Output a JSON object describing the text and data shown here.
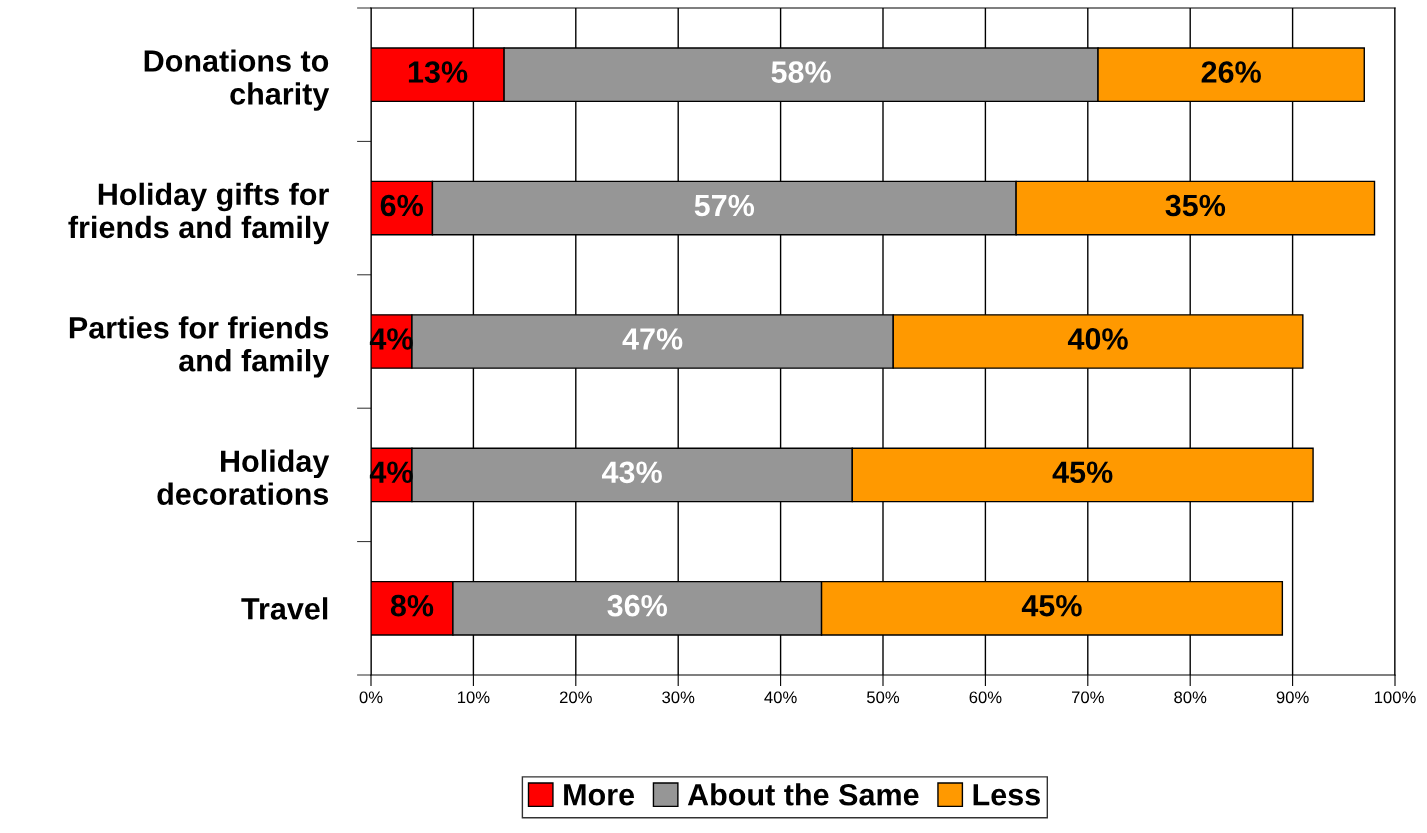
{
  "chart_data": {
    "type": "bar",
    "orientation": "horizontal",
    "stacked": true,
    "categories": [
      "Donations to\ncharity",
      "Holiday gifts for\nfriends and family",
      "Parties for friends\nand family",
      "Holiday\ndecorations",
      "Travel"
    ],
    "series": [
      {
        "name": "More",
        "color": "#ff0000",
        "values": [
          13,
          6,
          4,
          4,
          8
        ],
        "value_labels": [
          "13%",
          "6%",
          "4%",
          "4%",
          "8%"
        ]
      },
      {
        "name": "About the Same",
        "color": "#969696",
        "values": [
          58,
          57,
          47,
          43,
          36
        ],
        "value_labels": [
          "58%",
          "57%",
          "47%",
          "43%",
          "36%"
        ]
      },
      {
        "name": "Less",
        "color": "#ff9900",
        "values": [
          26,
          35,
          40,
          45,
          45
        ],
        "value_labels": [
          "26%",
          "35%",
          "40%",
          "45%",
          "45%"
        ]
      }
    ],
    "xlim": [
      0,
      100
    ],
    "xticks": [
      {
        "value": 0,
        "label": "0%"
      },
      {
        "value": 10,
        "label": "10%"
      },
      {
        "value": 20,
        "label": "20%"
      },
      {
        "value": 30,
        "label": "30%"
      },
      {
        "value": 40,
        "label": "40%"
      },
      {
        "value": 50,
        "label": "50%"
      },
      {
        "value": 60,
        "label": "60%"
      },
      {
        "value": 70,
        "label": "70%"
      },
      {
        "value": 80,
        "label": "80%"
      },
      {
        "value": 90,
        "label": "90%"
      },
      {
        "value": 100,
        "label": "100%"
      }
    ],
    "grid": "x",
    "legend": "bottom"
  }
}
